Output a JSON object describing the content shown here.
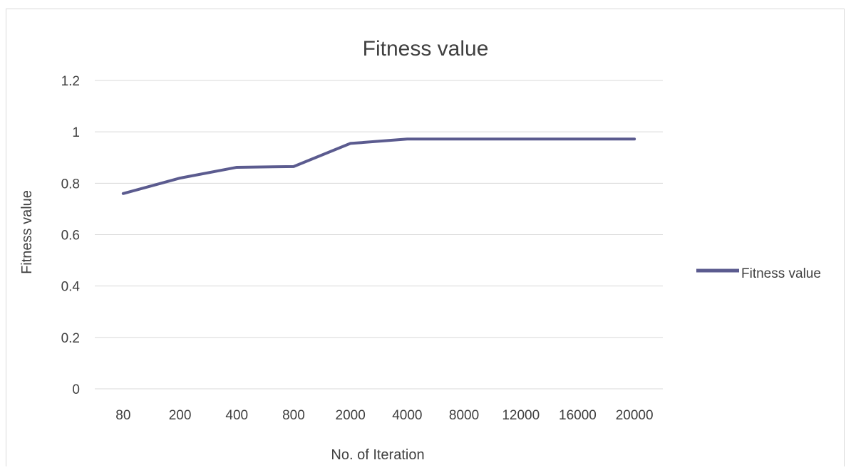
{
  "chart_data": {
    "type": "line",
    "title": "Fitness value",
    "xlabel": "No. of Iteration",
    "ylabel": "Fitness value",
    "categories": [
      "80",
      "200",
      "400",
      "800",
      "2000",
      "4000",
      "8000",
      "12000",
      "16000",
      "20000"
    ],
    "series": [
      {
        "name": "Fitness value",
        "values": [
          0.76,
          0.82,
          0.862,
          0.865,
          0.955,
          0.972,
          0.972,
          0.972,
          0.972,
          0.972
        ]
      }
    ],
    "ylim": [
      0,
      1.2
    ],
    "yticks": [
      "0",
      "0.2",
      "0.4",
      "0.6",
      "0.8",
      "1",
      "1.2"
    ],
    "grid": true,
    "legend": "right",
    "colors": {
      "series": "#5b5b8f",
      "grid": "#d9d9d9",
      "text": "#404040",
      "frame": "#d9d9d9"
    }
  }
}
